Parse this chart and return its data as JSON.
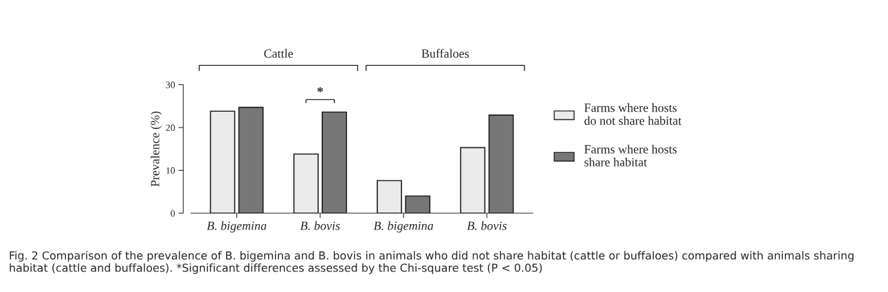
{
  "chart_data": {
    "type": "bar",
    "ylabel": "Prevalence (%)",
    "categories": [
      "B. bigemina",
      "B. bovis",
      "B. bigemina",
      "B. bovis"
    ],
    "series": [
      {
        "name": "Farms where hosts\ndo not share habitat",
        "color": "#ebebeb",
        "values": [
          23.8,
          13.8,
          7.6,
          15.3
        ]
      },
      {
        "name": "Farms where hosts\nshare habitat",
        "color": "#777777",
        "values": [
          24.7,
          23.6,
          4.0,
          22.9
        ]
      }
    ],
    "ylim": [
      0,
      30
    ],
    "yticks": [
      0,
      10,
      20,
      30
    ],
    "grid": false,
    "legend": "right",
    "annotations": [
      "Cattle",
      "Buffaloes",
      "*",
      "Fig. 2 Comparison of the prevalence of B. bigemina and B. bovis in animals who did not share habitat (cattle or buffaloes) compared with animals sharing habitat (cattle and buffaloes). *Significant differences assessed by the Chi-square test (P < 0.05)"
    ]
  }
}
